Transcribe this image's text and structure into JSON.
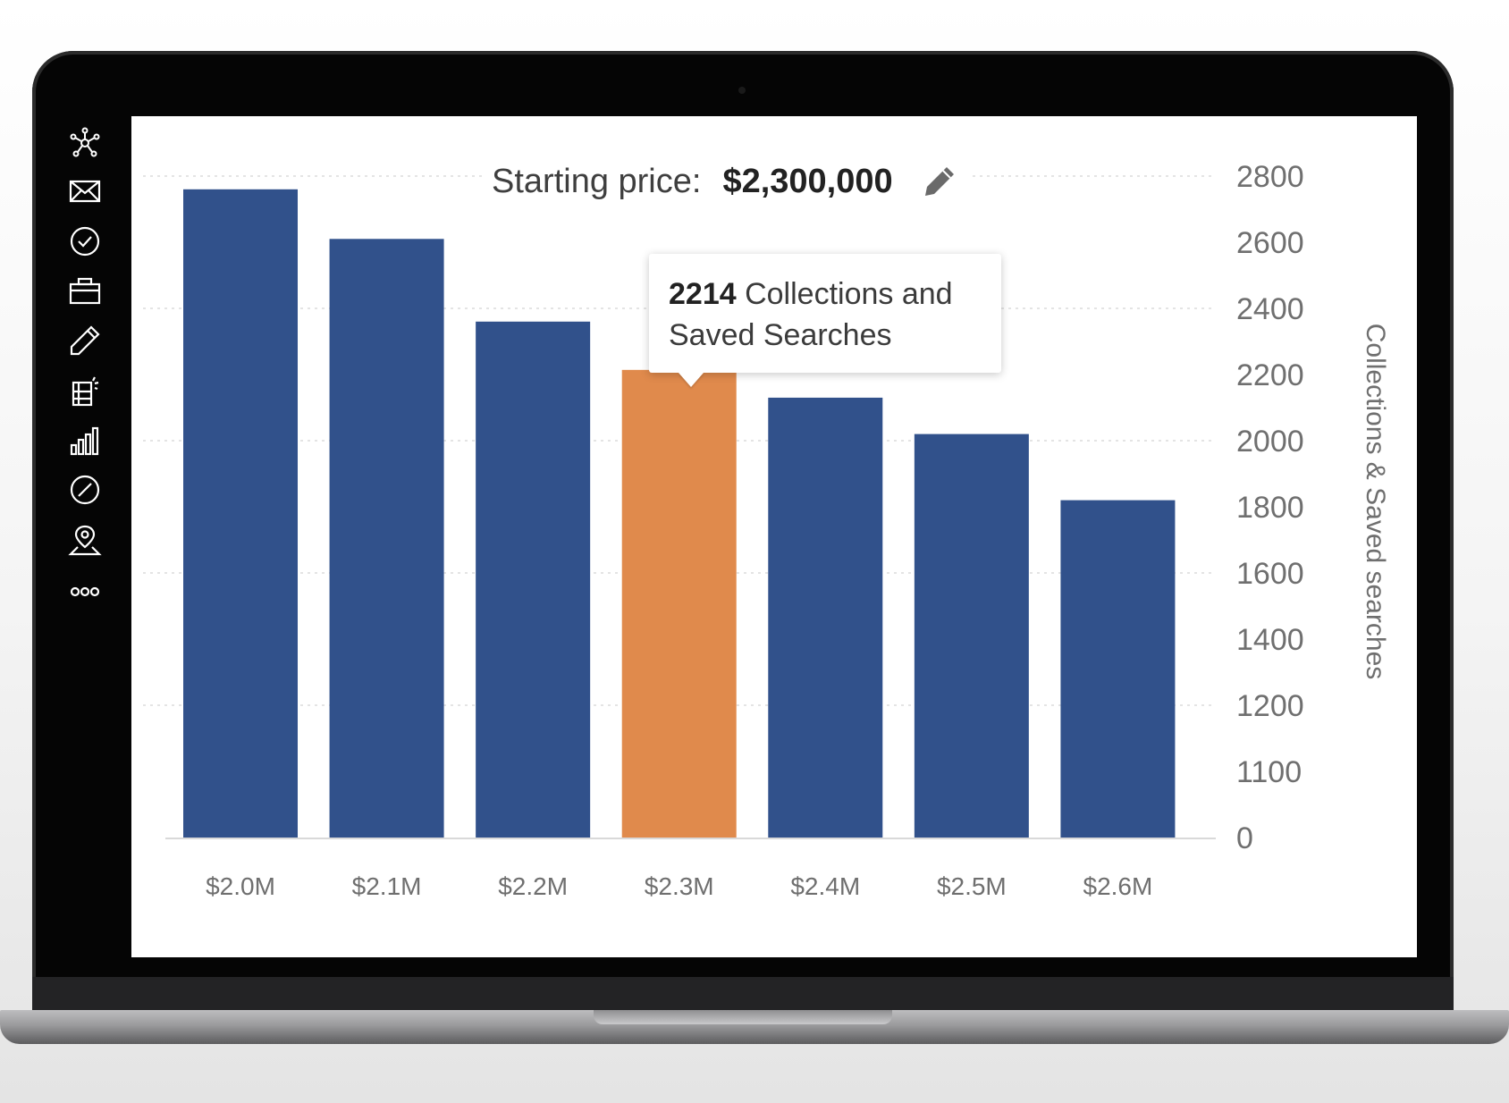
{
  "header": {
    "label": "Starting price:",
    "value": "$2,300,000",
    "edit_icon": "pencil-icon"
  },
  "sidebar": {
    "icons": [
      "network-icon",
      "envelope-icon",
      "checkmark-circle-icon",
      "briefcase-icon",
      "pencil-icon",
      "building-icon",
      "bar-chart-icon",
      "compass-icon",
      "map-pin-icon",
      "more-icon"
    ]
  },
  "tooltip": {
    "value": "2214",
    "text": " Collections and Saved Searches"
  },
  "colors": {
    "bar": "#31518b",
    "highlight": "#e08a4c",
    "axis_text": "#6f6f6f",
    "gridline": "#dcdcdc"
  },
  "chart_data": {
    "type": "bar",
    "title": "",
    "xlabel": "",
    "ylabel": "Collections & Saved searches",
    "categories": [
      "$2.0M",
      "$2.1M",
      "$2.2M",
      "$2.3M",
      "$2.4M",
      "$2.5M",
      "$2.6M"
    ],
    "values": [
      2760,
      2610,
      2360,
      2214,
      2130,
      2020,
      1820
    ],
    "highlighted_category": "$2.3M",
    "y_axis_position": "right",
    "y_ticks": [
      "2800",
      "2600",
      "2400",
      "2200",
      "2000",
      "1800",
      "1600",
      "1400",
      "1200",
      "1100",
      "0"
    ],
    "grid": true
  }
}
